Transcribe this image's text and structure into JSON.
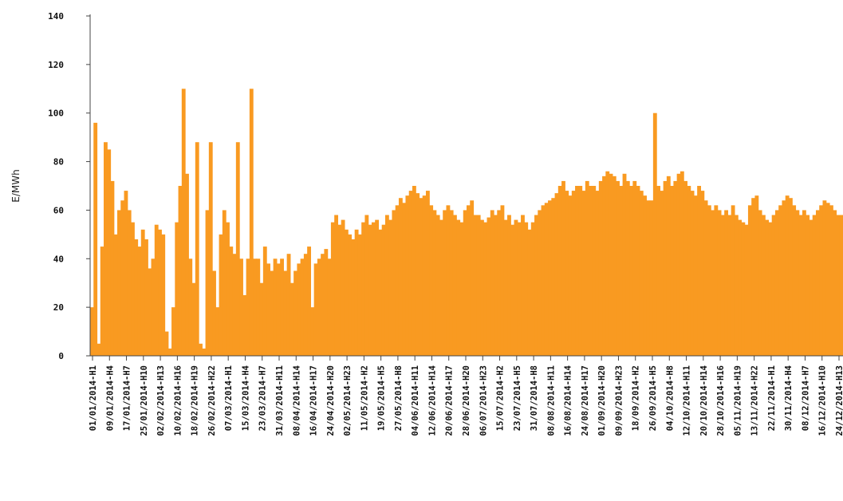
{
  "chart_data": {
    "type": "bar",
    "title": "",
    "xlabel": "",
    "ylabel": "E/MWh",
    "ylim": [
      0,
      140
    ],
    "yticks": [
      "0",
      "20",
      "40",
      "60",
      "80",
      "100",
      "120",
      "140"
    ],
    "grid": false,
    "bar_color": "#f99a21",
    "xtick_labels": [
      "01/01/2014-H1",
      "09/01/2014-H4",
      "17/01/2014-H7",
      "25/01/2014-H10",
      "02/02/2014-H13",
      "10/02/2014-H16",
      "18/02/2014-H19",
      "26/02/2014-H22",
      "07/03/2014-H1",
      "15/03/2014-H4",
      "23/03/2014-H7",
      "31/03/2014-H11",
      "08/04/2014-H14",
      "16/04/2014-H17",
      "24/04/2014-H20",
      "02/05/2014-H23",
      "11/05/2014-H2",
      "19/05/2014-H5",
      "27/05/2014-H8",
      "04/06/2014-H11",
      "12/06/2014-H14",
      "20/06/2014-H17",
      "28/06/2014-H20",
      "06/07/2014-H23",
      "15/07/2014-H2",
      "23/07/2014-H5",
      "31/07/2014-H8",
      "08/08/2014-H11",
      "16/08/2014-H14",
      "24/08/2014-H17",
      "01/09/2014-H20",
      "09/09/2014-H23",
      "18/09/2014-H2",
      "26/09/2014-H5",
      "04/10/2014-H8",
      "12/10/2014-H11",
      "20/10/2014-H14",
      "28/10/2014-H16",
      "05/11/2014-H19",
      "13/11/2014-H22",
      "22/11/2014-H1",
      "30/11/2014-H4",
      "08/12/2014-H7",
      "16/12/2014-H10",
      "24/12/2014-H13"
    ],
    "series": [
      {
        "values": [
          20,
          96,
          5,
          45,
          88,
          85,
          72,
          50,
          60,
          64,
          68,
          60,
          55,
          48,
          45,
          52,
          48,
          36,
          40,
          54,
          52,
          50,
          10,
          3,
          20,
          55,
          70,
          110,
          75,
          40,
          30,
          88,
          5,
          3,
          60,
          88,
          35,
          20,
          50,
          60,
          55,
          45,
          42,
          88,
          40,
          25,
          40,
          110,
          40,
          40,
          30,
          45,
          38,
          35,
          40,
          38,
          40,
          35,
          42,
          30,
          35,
          38,
          40,
          42,
          45,
          20,
          38,
          40,
          42,
          44,
          40,
          55,
          58,
          54,
          56,
          52,
          50,
          48,
          52,
          50,
          55,
          58,
          54,
          55,
          56,
          52,
          54,
          58,
          56,
          60,
          62,
          65,
          63,
          66,
          68,
          70,
          67,
          65,
          66,
          68,
          62,
          60,
          58,
          56,
          60,
          62,
          60,
          58,
          56,
          55,
          60,
          62,
          64,
          58,
          58,
          56,
          55,
          57,
          60,
          58,
          60,
          62,
          56,
          58,
          54,
          56,
          55,
          58,
          55,
          52,
          55,
          58,
          60,
          62,
          63,
          64,
          65,
          67,
          70,
          72,
          68,
          66,
          68,
          70,
          70,
          68,
          72,
          70,
          70,
          68,
          72,
          74,
          76,
          75,
          74,
          72,
          70,
          75,
          72,
          70,
          72,
          70,
          68,
          66,
          64,
          64,
          100,
          70,
          68,
          72,
          74,
          70,
          72,
          75,
          76,
          72,
          70,
          68,
          66,
          70,
          68,
          64,
          62,
          60,
          62,
          60,
          58,
          60,
          58,
          62,
          58,
          56,
          55,
          54,
          62,
          65,
          66,
          60,
          58,
          56,
          55,
          58,
          60,
          62,
          64,
          66,
          65,
          62,
          60,
          58,
          60,
          58,
          56,
          58,
          60,
          62,
          64,
          63,
          62,
          60,
          58,
          58
        ]
      }
    ]
  }
}
